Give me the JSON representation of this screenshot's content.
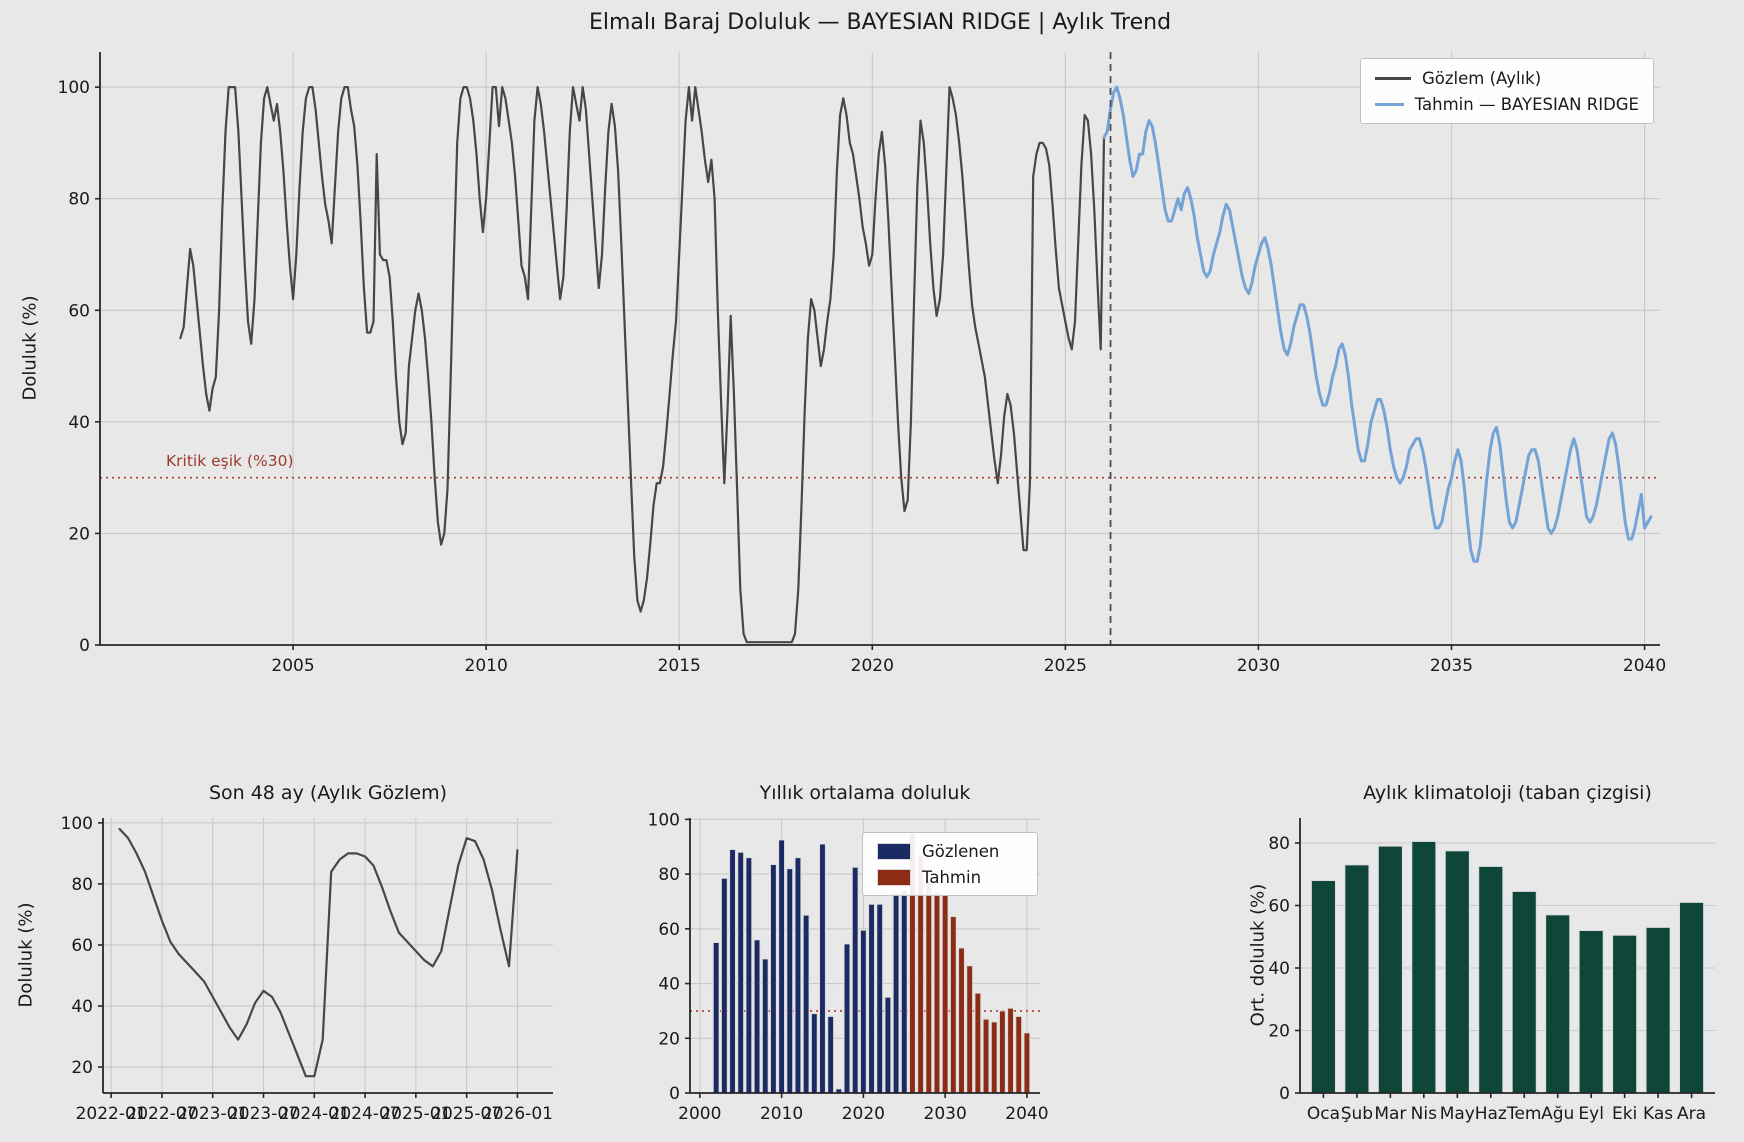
{
  "colors": {
    "background": "#e8e8e8",
    "grid": "#c9c9c9",
    "spine": "#262626",
    "text": "#1a1a1a",
    "observed": "#474747",
    "forecast": "#74a3d6",
    "threshold": "#ad3d2b",
    "boundary": "#4d4d4d",
    "bar_navy": "#1b2a63",
    "bar_red": "#8c2c14",
    "bar_green": "#0f463a",
    "bar_edge": "#dcdcdc"
  },
  "chart_data": [
    {
      "id": "main",
      "type": "line",
      "title": "Elmalı Baraj Doluluk — BAYESIAN RIDGE | Aylık Trend",
      "ylabel": "Doluluk (%)",
      "xlim": [
        2000.0,
        2040.4
      ],
      "ylim": [
        0,
        106.3
      ],
      "xticks": [
        2005,
        2010,
        2015,
        2020,
        2025,
        2030,
        2035,
        2040
      ],
      "yticks": [
        0,
        20,
        40,
        60,
        80,
        100
      ],
      "grid": "both",
      "legend_position": "upper right",
      "threshold": {
        "value": 30,
        "label": "Kritik eşik (%30)",
        "color": "#ad3d2b"
      },
      "split_time": 2026.17,
      "series": [
        {
          "name": "Gözlem (Aylık)",
          "color": "#474747",
          "width": 2.2,
          "start": 2002.0833,
          "step_months": 1,
          "values": [
            55,
            57,
            64,
            71,
            68,
            62,
            56,
            50,
            45,
            42,
            46,
            48,
            60,
            78,
            92,
            100,
            100,
            100,
            92,
            80,
            68,
            58,
            54,
            62,
            76,
            90,
            98,
            100,
            97,
            94,
            97,
            92,
            85,
            76,
            68,
            62,
            70,
            82,
            92,
            98,
            100,
            100,
            96,
            90,
            84,
            79,
            76,
            72,
            82,
            92,
            98,
            100,
            100,
            96,
            93,
            86,
            76,
            64,
            56,
            56,
            58,
            88,
            70,
            69,
            69,
            66,
            58,
            48,
            40,
            36,
            38,
            50,
            55,
            60,
            63,
            60,
            55,
            48,
            40,
            30,
            22,
            18,
            20,
            28,
            48,
            70,
            90,
            98,
            100,
            100,
            98,
            94,
            88,
            80,
            74,
            80,
            90,
            100,
            100,
            93,
            100,
            98,
            94,
            90,
            84,
            76,
            68,
            66,
            62,
            78,
            94,
            100,
            97,
            92,
            86,
            80,
            74,
            68,
            62,
            66,
            78,
            92,
            100,
            97,
            94,
            100,
            96,
            88,
            80,
            72,
            64,
            70,
            82,
            92,
            97,
            93,
            85,
            72,
            58,
            44,
            30,
            16,
            8,
            6,
            8,
            12,
            18,
            25,
            29,
            29,
            32,
            38,
            45,
            52,
            58,
            70,
            82,
            94,
            100,
            94,
            100,
            96,
            92,
            87,
            83,
            87,
            80,
            60,
            44,
            29,
            42,
            59,
            45,
            28,
            10,
            2,
            0.5,
            0.5,
            0.5,
            0.5,
            0.5,
            0.5,
            0.5,
            0.5,
            0.5,
            0.5,
            0.5,
            0.5,
            0.5,
            0.5,
            0.5,
            2,
            10,
            25,
            42,
            55,
            62,
            60,
            55,
            50,
            53,
            58,
            62,
            70,
            85,
            95,
            98,
            95,
            90,
            88,
            84,
            80,
            75,
            72,
            68,
            70,
            80,
            88,
            92,
            86,
            76,
            64,
            52,
            40,
            30,
            24,
            26,
            40,
            62,
            82,
            94,
            90,
            82,
            72,
            64,
            59,
            62,
            70,
            85,
            100,
            98,
            95,
            90,
            84,
            76,
            68,
            61,
            57,
            54,
            51,
            48,
            43,
            38,
            33,
            29,
            34,
            41,
            45,
            43,
            38,
            31,
            24,
            17,
            17,
            29,
            84,
            88,
            90,
            90,
            89,
            86,
            79,
            71,
            64,
            61,
            58,
            55,
            53,
            58,
            72,
            86,
            95,
            94,
            88,
            78,
            65,
            53,
            91
          ]
        },
        {
          "name": "Tahmin — BAYESIAN RIDGE",
          "color": "#74a3d6",
          "width": 3,
          "start": 2026.0,
          "step_months": 1,
          "values": [
            91,
            92,
            96,
            99,
            100,
            98,
            95,
            91,
            87,
            84,
            85,
            88,
            88,
            92,
            94,
            93,
            90,
            86,
            82,
            78,
            76,
            76,
            78,
            80,
            78,
            81,
            82,
            80,
            77,
            73,
            70,
            67,
            66,
            67,
            70,
            72,
            74,
            77,
            79,
            78,
            75,
            72,
            69,
            66,
            64,
            63,
            65,
            68,
            70,
            72,
            73,
            71,
            68,
            64,
            60,
            56,
            53,
            52,
            54,
            57,
            59,
            61,
            61,
            59,
            56,
            52,
            48,
            45,
            43,
            43,
            45,
            48,
            50,
            53,
            54,
            52,
            48,
            43,
            39,
            35,
            33,
            33,
            36,
            40,
            42,
            44,
            44,
            42,
            39,
            35,
            32,
            30,
            29,
            30,
            32,
            35,
            36,
            37,
            37,
            35,
            32,
            28,
            24,
            21,
            21,
            22,
            25,
            28,
            30,
            33,
            35,
            33,
            28,
            22,
            17,
            15,
            15,
            18,
            24,
            30,
            35,
            38,
            39,
            36,
            31,
            26,
            22,
            21,
            22,
            25,
            28,
            31,
            34,
            35,
            35,
            33,
            29,
            25,
            21,
            20,
            21,
            23,
            26,
            29,
            32,
            35,
            37,
            35,
            31,
            27,
            23,
            22,
            23,
            25,
            28,
            31,
            34,
            37,
            38,
            36,
            32,
            27,
            22,
            19,
            19,
            21,
            24,
            27,
            21,
            22,
            23
          ]
        }
      ]
    },
    {
      "id": "son48",
      "type": "line",
      "title": "Son 48 ay (Aylık Gözlem)",
      "ylabel": "Doluluk (%)",
      "xlim": [
        2021.92,
        2026.35
      ],
      "ylim": [
        11.5,
        101.6
      ],
      "xtick_values": [
        2022.0,
        2022.5,
        2023.0,
        2023.5,
        2024.0,
        2024.5,
        2025.0,
        2025.5,
        2026.0
      ],
      "xtick_labels": [
        "2022-01",
        "2022-07",
        "2023-01",
        "2023-07",
        "2024-01",
        "2024-07",
        "2025-01",
        "2025-07",
        "2026-01"
      ],
      "yticks": [
        20,
        40,
        60,
        80,
        100
      ],
      "grid": "both",
      "series": [
        {
          "name": "Gözlem (Aylık)",
          "color": "#474747",
          "width": 2.2,
          "start": 2022.0833,
          "step_months": 1,
          "values": [
            98,
            95,
            90,
            84,
            76,
            68,
            61,
            57,
            54,
            51,
            48,
            43,
            38,
            33,
            29,
            34,
            41,
            45,
            43,
            38,
            31,
            24,
            17,
            17,
            29,
            84,
            88,
            90,
            90,
            89,
            86,
            79,
            71,
            64,
            61,
            58,
            55,
            53,
            58,
            72,
            86,
            95,
            94,
            88,
            78,
            65,
            53,
            91
          ]
        }
      ]
    },
    {
      "id": "yearly",
      "type": "bar",
      "title": "Yıllık ortalama doluluk",
      "xlim": [
        1998.8,
        2041.6
      ],
      "ylim": [
        0,
        100.5
      ],
      "xticks": [
        2000,
        2010,
        2020,
        2030,
        2040
      ],
      "yticks": [
        0,
        20,
        40,
        60,
        80,
        100
      ],
      "grid": "both",
      "threshold": {
        "value": 30,
        "color": "#ad3d2b"
      },
      "legend": [
        {
          "label": "Gözlenen",
          "color": "#1b2a63"
        },
        {
          "label": "Tahmin",
          "color": "#8c2c14"
        }
      ],
      "series": [
        {
          "name": "Gözlenen",
          "color": "#1b2a63",
          "start_year": 2002,
          "values": [
            55,
            78.5,
            89,
            88,
            86,
            56,
            49,
            83.5,
            92.5,
            82,
            86,
            65,
            29,
            91,
            28,
            1.5,
            54.5,
            82.5,
            59.5,
            69,
            69,
            35,
            73,
            74
          ]
        },
        {
          "name": "Tahmin",
          "color": "#8c2c14",
          "start_year": 2026,
          "values": [
            95,
            87,
            77.5,
            73.5,
            72.5,
            64.5,
            53,
            46.5,
            36.5,
            27,
            26,
            30,
            31,
            28,
            22
          ]
        }
      ]
    },
    {
      "id": "clim",
      "type": "bar",
      "title": "Aylık klimatoloji (taban çizgisi)",
      "ylabel": "Ort. doluluk (%)",
      "xlim": [
        0.3,
        12.7
      ],
      "ylim": [
        0,
        88
      ],
      "yticks": [
        0,
        20,
        40,
        60,
        80
      ],
      "grid": "y",
      "categories": [
        "Oca",
        "Şub",
        "Mar",
        "Nis",
        "May",
        "Haz",
        "Tem",
        "Ağu",
        "Eyl",
        "Eki",
        "Kas",
        "Ara"
      ],
      "values": [
        68,
        73,
        79,
        80.5,
        77.5,
        72.5,
        64.5,
        57,
        52,
        50.5,
        53,
        61
      ],
      "bar_color": "#0f463a"
    }
  ]
}
